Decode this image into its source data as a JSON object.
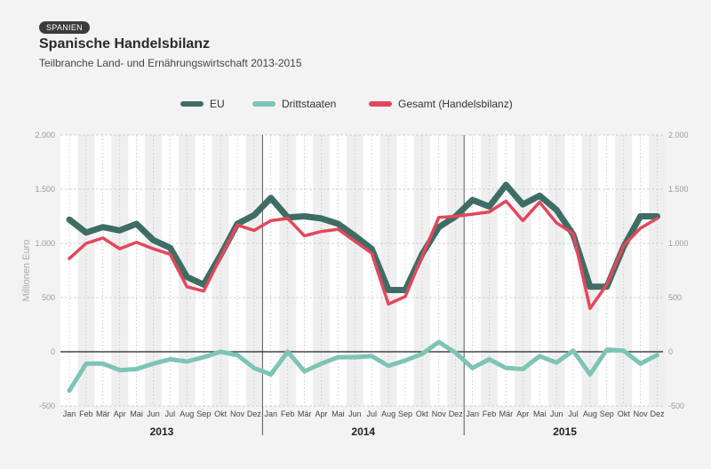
{
  "header": {
    "tag": "SPANIEN",
    "title": "Spanische Handelsbilanz",
    "subtitle": "Teilbranche Land- und Ernährungswirtschaft 2013-2015"
  },
  "chart_data": {
    "type": "line",
    "ylabel": "Millionen Euro",
    "ylim": [
      -500,
      2000
    ],
    "yticks": [
      -500,
      0,
      500,
      1000,
      1500,
      2000
    ],
    "ytick_labels": [
      "-500",
      "0",
      "500",
      "1.000",
      "1.500",
      "2.000"
    ],
    "grid": true,
    "legend_position": "top",
    "months": [
      "Jan",
      "Feb",
      "Mär",
      "Apr",
      "Mai",
      "Jun",
      "Jul",
      "Aug",
      "Sep",
      "Okt",
      "Nov",
      "Dez"
    ],
    "years": [
      "2013",
      "2014",
      "2015"
    ],
    "series": [
      {
        "name": "EU",
        "color": "#3e6d63",
        "values": [
          1220,
          1100,
          1150,
          1120,
          1180,
          1030,
          960,
          690,
          620,
          890,
          1180,
          1260,
          1420,
          1240,
          1250,
          1230,
          1180,
          1070,
          950,
          570,
          570,
          900,
          1150,
          1250,
          1400,
          1340,
          1540,
          1360,
          1440,
          1310,
          1080,
          600,
          600,
          970,
          1250,
          1250
        ]
      },
      {
        "name": "Drittstaaten",
        "color": "#7dc4b6",
        "values": [
          -360,
          -110,
          -110,
          -170,
          -160,
          -110,
          -70,
          -90,
          -50,
          0,
          -30,
          -150,
          -210,
          0,
          -180,
          -110,
          -50,
          -50,
          -40,
          -130,
          -80,
          -20,
          90,
          -10,
          -150,
          -70,
          -150,
          -160,
          -40,
          -100,
          10,
          -210,
          20,
          10,
          -110,
          -30
        ]
      },
      {
        "name": "Gesamt (Handelsbilanz)",
        "color": "#e2475c",
        "values": [
          860,
          1000,
          1050,
          950,
          1010,
          950,
          900,
          600,
          560,
          870,
          1170,
          1120,
          1210,
          1230,
          1070,
          1110,
          1130,
          1020,
          910,
          440,
          510,
          880,
          1240,
          1250,
          1270,
          1290,
          1390,
          1210,
          1380,
          1190,
          1090,
          400,
          620,
          980,
          1140,
          1230
        ]
      }
    ]
  }
}
